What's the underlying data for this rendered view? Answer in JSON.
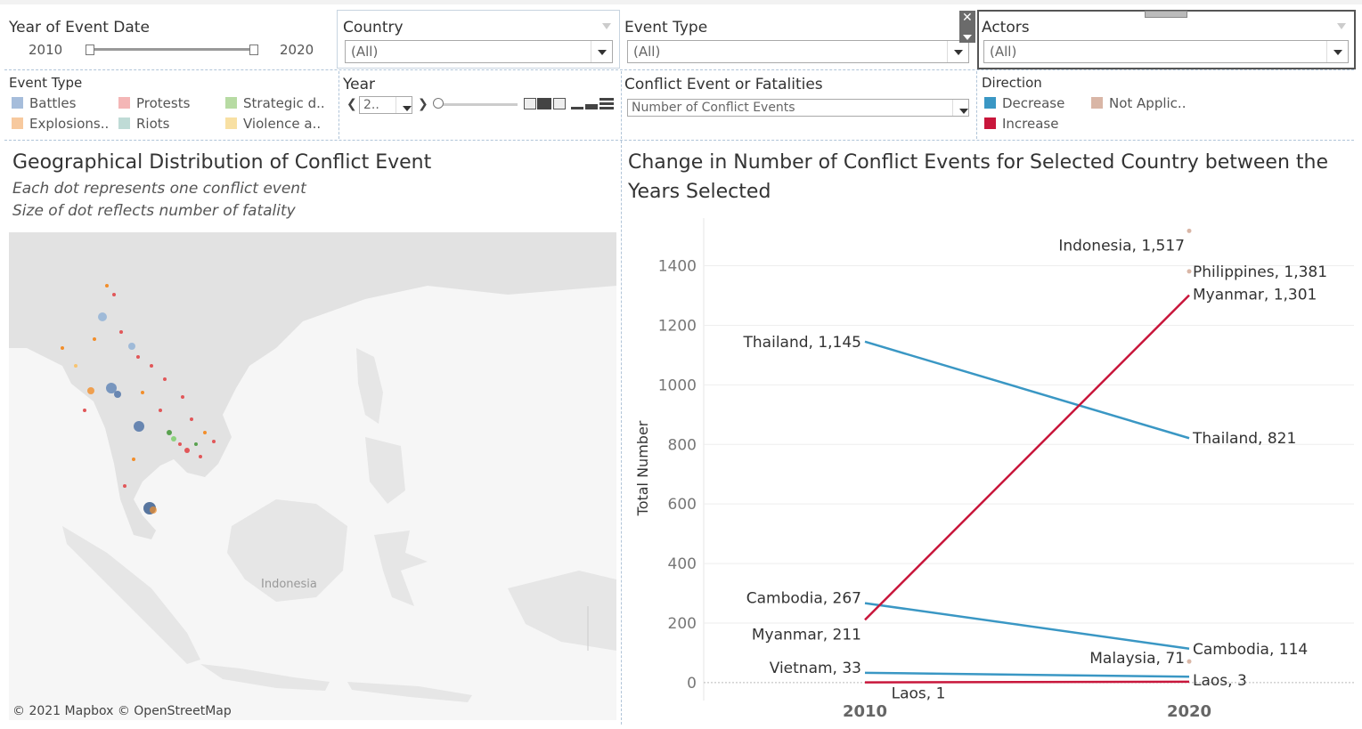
{
  "filters": {
    "year_of_event": {
      "label": "Year of Event Date",
      "min": "2010",
      "max": "2020"
    },
    "country": {
      "label": "Country",
      "value": "(All)"
    },
    "event_type_filter": {
      "label": "Event Type",
      "value": "(All)"
    },
    "actors": {
      "label": "Actors",
      "value": "(All)"
    },
    "year_player": {
      "label": "Year",
      "value": "2.."
    },
    "measure": {
      "label": "Conflict Event or Fatalities",
      "value": "Number of Conflict Events"
    }
  },
  "event_type_legend": {
    "title": "Event Type",
    "items": [
      {
        "label": "Battles",
        "color": "#a6bddb"
      },
      {
        "label": "Protests",
        "color": "#f4b6b6"
      },
      {
        "label": "Strategic d..",
        "color": "#b7dba3"
      },
      {
        "label": "Explosions..",
        "color": "#f7c99e"
      },
      {
        "label": "Riots",
        "color": "#bfdbd6"
      },
      {
        "label": "Violence a..",
        "color": "#f8e0a3"
      }
    ]
  },
  "direction_legend": {
    "title": "Direction",
    "items": [
      {
        "label": "Decrease",
        "color": "#3a97c4"
      },
      {
        "label": "Not Applic..",
        "color": "#d9b6a6"
      },
      {
        "label": "Increase",
        "color": "#c8163b"
      }
    ]
  },
  "map_panel": {
    "title": "Geographical Distribution of Conflict Event",
    "subtitle1": "Each dot represents one conflict event",
    "subtitle2": "Size of dot reflects number of fatality",
    "region_label": "Indonesia",
    "attribution": "© 2021 Mapbox © OpenStreetMap"
  },
  "chart_panel": {
    "title_line1": "Change in Number of Conflict Events for Selected Country between the",
    "title_line2": "Years Selected"
  },
  "chart_data": {
    "type": "slope",
    "title": "Change in Number of Conflict Events for Selected Country between the Years Selected",
    "ylabel": "Total Number",
    "x": [
      "2010",
      "2020"
    ],
    "ylim": [
      -60,
      1560
    ],
    "yticks": [
      0,
      200,
      400,
      600,
      800,
      1000,
      1200,
      1400
    ],
    "grid": true,
    "series": [
      {
        "name": "Thailand",
        "values": [
          1145,
          821
        ],
        "direction": "Decrease",
        "color": "#3a97c4",
        "labels": [
          "Thailand, 1,145",
          "Thailand, 821"
        ]
      },
      {
        "name": "Cambodia",
        "values": [
          267,
          114
        ],
        "direction": "Decrease",
        "color": "#3a97c4",
        "labels": [
          "Cambodia, 267",
          "Cambodia, 114"
        ]
      },
      {
        "name": "Vietnam",
        "values": [
          33,
          20
        ],
        "direction": "Decrease",
        "color": "#3a97c4",
        "labels": [
          "Vietnam, 33",
          ""
        ]
      },
      {
        "name": "Myanmar",
        "values": [
          211,
          1301
        ],
        "direction": "Increase",
        "color": "#c8163b",
        "labels": [
          "Myanmar, 211",
          "Myanmar, 1,301"
        ]
      },
      {
        "name": "Laos",
        "values": [
          1,
          3
        ],
        "direction": "Increase",
        "color": "#c8163b",
        "labels": [
          "Laos, 1",
          "Laos, 3"
        ]
      },
      {
        "name": "Indonesia",
        "values": [
          null,
          1517
        ],
        "direction": "Not Applicable",
        "color": "#d9b6a6",
        "labels": [
          "",
          "Indonesia, 1,517"
        ]
      },
      {
        "name": "Philippines",
        "values": [
          null,
          1381
        ],
        "direction": "Not Applicable",
        "color": "#d9b6a6",
        "labels": [
          "",
          "Philippines, 1,381"
        ]
      },
      {
        "name": "Malaysia",
        "values": [
          null,
          71
        ],
        "direction": "Not Applicable",
        "color": "#d9b6a6",
        "labels": [
          "",
          "Malaysia, 71"
        ]
      }
    ]
  }
}
